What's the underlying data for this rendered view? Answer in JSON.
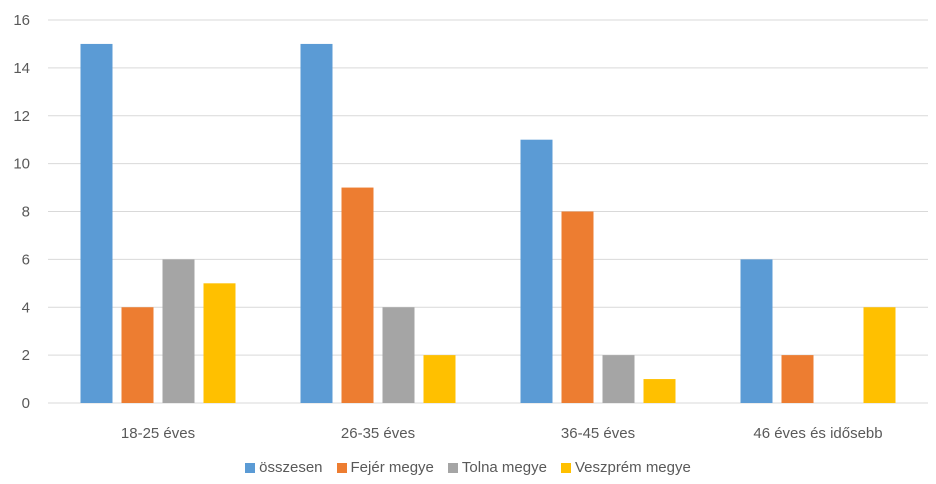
{
  "chart_data": {
    "type": "bar",
    "title": "",
    "xlabel": "",
    "ylabel": "",
    "ylim": [
      0,
      16
    ],
    "yticks": [
      0,
      2,
      4,
      6,
      8,
      10,
      12,
      14,
      16
    ],
    "grid": true,
    "legend_position": "bottom",
    "categories": [
      "18-25 éves",
      "26-35 éves",
      "36-45 éves",
      "46 éves és idősebb"
    ],
    "series": [
      {
        "name": "összesen",
        "color": "#5B9BD5",
        "values": [
          15,
          15,
          11,
          6
        ]
      },
      {
        "name": "Fejér megye",
        "color": "#ED7D31",
        "values": [
          4,
          9,
          8,
          2
        ]
      },
      {
        "name": "Tolna megye",
        "color": "#A5A5A5",
        "values": [
          6,
          4,
          2,
          0
        ]
      },
      {
        "name": "Veszprém megye",
        "color": "#FFC000",
        "values": [
          5,
          2,
          1,
          4
        ]
      }
    ]
  }
}
